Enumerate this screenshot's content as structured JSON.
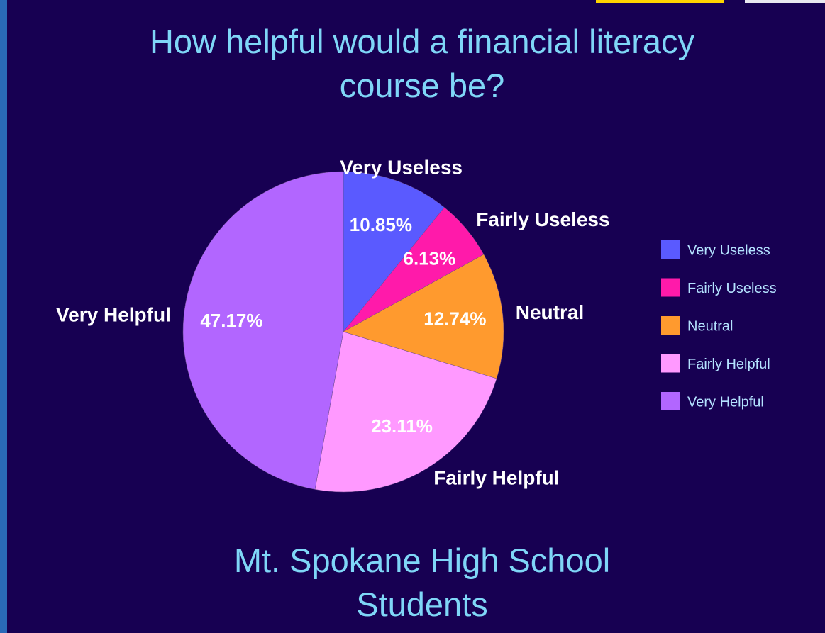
{
  "chart_data": {
    "type": "pie",
    "title": "How helpful would a financial literacy course be?",
    "subtitle": "Mt. Spokane High School Students",
    "categories": [
      "Very Useless",
      "Fairly Useless",
      "Neutral",
      "Fairly Helpful",
      "Very Helpful"
    ],
    "values": [
      10.85,
      6.13,
      12.74,
      23.11,
      47.17
    ],
    "value_labels": [
      "10.85%",
      "6.13%",
      "12.74%",
      "23.11%",
      "47.17%"
    ],
    "colors": [
      "#5a5aff",
      "#ff1aaa",
      "#ff9a2e",
      "#ff99ff",
      "#b266ff"
    ],
    "legend": "right"
  }
}
